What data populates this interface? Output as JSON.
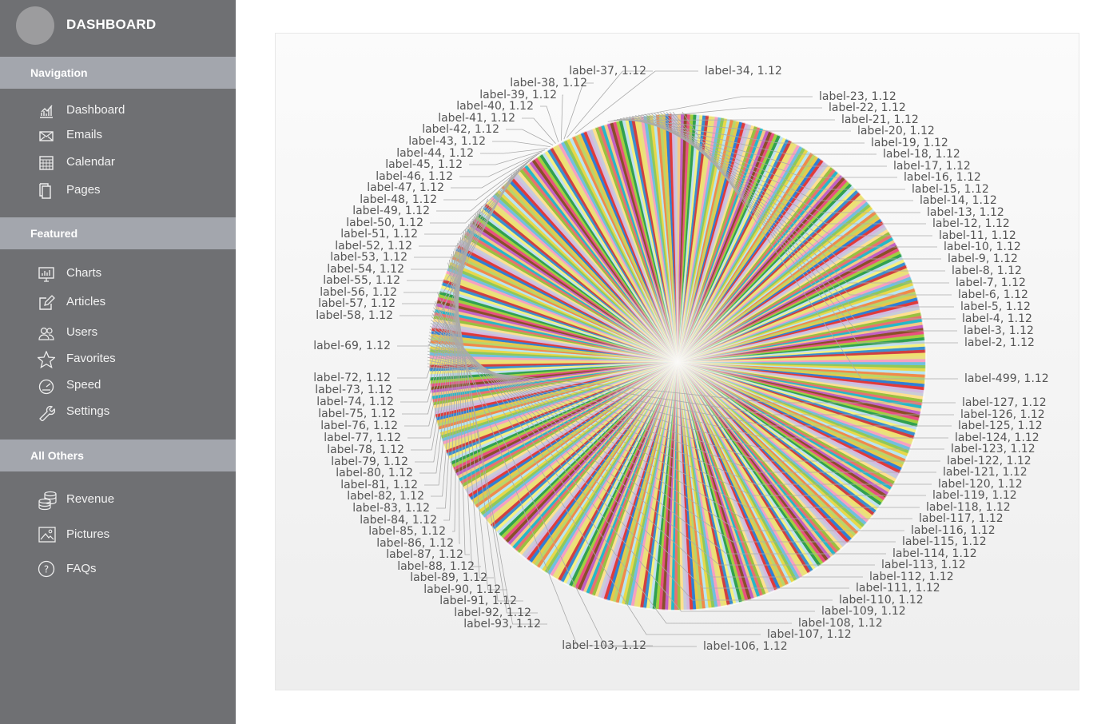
{
  "sidebar": {
    "brand": "DASHBOARD",
    "sections": [
      {
        "title": "Navigation",
        "items": [
          {
            "label": "Dashboard",
            "icon": "bar-chart-icon"
          },
          {
            "label": "Emails",
            "icon": "envelope-icon"
          },
          {
            "label": "Calendar",
            "icon": "calendar-icon"
          },
          {
            "label": "Pages",
            "icon": "pages-icon"
          }
        ]
      },
      {
        "title": "Featured",
        "items": [
          {
            "label": "Charts",
            "icon": "presentation-chart-icon"
          },
          {
            "label": "Articles",
            "icon": "edit-icon"
          },
          {
            "label": "Users",
            "icon": "users-icon"
          },
          {
            "label": "Favorites",
            "icon": "star-icon"
          },
          {
            "label": "Speed",
            "icon": "speedometer-icon"
          },
          {
            "label": "Settings",
            "icon": "wrench-icon"
          }
        ]
      },
      {
        "title": "All Others",
        "items": [
          {
            "label": "Revenue",
            "icon": "coins-icon"
          },
          {
            "label": "Pictures",
            "icon": "picture-icon"
          },
          {
            "label": "FAQs",
            "icon": "question-icon"
          }
        ]
      }
    ]
  },
  "colors": {
    "sidebar_bg": "#6f7073",
    "section_bg": "#a3a6ad",
    "palette": [
      "#c8ccd8",
      "#d2b8e0",
      "#e03a3a",
      "#2f7fd4",
      "#e8c84a",
      "#b9d56a",
      "#f08a4a",
      "#b8e6f0",
      "#e8d84a",
      "#8fc85a",
      "#6fc0e0",
      "#f7a0c0",
      "#e8e080",
      "#f0e070",
      "#d04040",
      "#3a90d0",
      "#f5f080",
      "#c0e0f0",
      "#30a050",
      "#a0d040",
      "#e85080",
      "#8a4f28",
      "#c25fc5",
      "#f4c986",
      "#25b8c8",
      "#e97070",
      "#99c040",
      "#ffe090"
    ]
  },
  "chart_data": {
    "type": "pie",
    "title": "",
    "n_slices": 500,
    "slice_value": 1.12,
    "label_pattern": "label-{i}, {value}",
    "visible_labels": [
      {
        "label": "label-34",
        "value": 1.12
      },
      {
        "label": "label-37",
        "value": 1.12
      },
      {
        "label": "label-38",
        "value": 1.12
      },
      {
        "label": "label-39",
        "value": 1.12
      },
      {
        "label": "label-40",
        "value": 1.12
      },
      {
        "label": "label-41",
        "value": 1.12
      },
      {
        "label": "label-42",
        "value": 1.12
      },
      {
        "label": "label-43",
        "value": 1.12
      },
      {
        "label": "label-44",
        "value": 1.12
      },
      {
        "label": "label-45",
        "value": 1.12
      },
      {
        "label": "label-46",
        "value": 1.12
      },
      {
        "label": "label-47",
        "value": 1.12
      },
      {
        "label": "label-48",
        "value": 1.12
      },
      {
        "label": "label-49",
        "value": 1.12
      },
      {
        "label": "label-50",
        "value": 1.12
      },
      {
        "label": "label-51",
        "value": 1.12
      },
      {
        "label": "label-52",
        "value": 1.12
      },
      {
        "label": "label-53",
        "value": 1.12
      },
      {
        "label": "label-54",
        "value": 1.12
      },
      {
        "label": "label-55",
        "value": 1.12
      },
      {
        "label": "label-56",
        "value": 1.12
      },
      {
        "label": "label-57",
        "value": 1.12
      },
      {
        "label": "label-58",
        "value": 1.12
      },
      {
        "label": "label-69",
        "value": 1.12
      },
      {
        "label": "label-72",
        "value": 1.12
      },
      {
        "label": "label-73",
        "value": 1.12
      },
      {
        "label": "label-74",
        "value": 1.12
      },
      {
        "label": "label-75",
        "value": 1.12
      },
      {
        "label": "label-76",
        "value": 1.12
      },
      {
        "label": "label-77",
        "value": 1.12
      },
      {
        "label": "label-78",
        "value": 1.12
      },
      {
        "label": "label-79",
        "value": 1.12
      },
      {
        "label": "label-80",
        "value": 1.12
      },
      {
        "label": "label-81",
        "value": 1.12
      },
      {
        "label": "label-82",
        "value": 1.12
      },
      {
        "label": "label-83",
        "value": 1.12
      },
      {
        "label": "label-84",
        "value": 1.12
      },
      {
        "label": "label-85",
        "value": 1.12
      },
      {
        "label": "label-86",
        "value": 1.12
      },
      {
        "label": "label-87",
        "value": 1.12
      },
      {
        "label": "label-88",
        "value": 1.12
      },
      {
        "label": "label-89",
        "value": 1.12
      },
      {
        "label": "label-90",
        "value": 1.12
      },
      {
        "label": "label-91",
        "value": 1.12
      },
      {
        "label": "label-92",
        "value": 1.12
      },
      {
        "label": "label-93",
        "value": 1.12
      },
      {
        "label": "label-103",
        "value": 1.12
      },
      {
        "label": "label-106",
        "value": 1.12
      },
      {
        "label": "label-107",
        "value": 1.12
      },
      {
        "label": "label-108",
        "value": 1.12
      },
      {
        "label": "label-109",
        "value": 1.12
      },
      {
        "label": "label-110",
        "value": 1.12
      },
      {
        "label": "label-111",
        "value": 1.12
      },
      {
        "label": "label-112",
        "value": 1.12
      },
      {
        "label": "label-113",
        "value": 1.12
      },
      {
        "label": "label-114",
        "value": 1.12
      },
      {
        "label": "label-115",
        "value": 1.12
      },
      {
        "label": "label-116",
        "value": 1.12
      },
      {
        "label": "label-117",
        "value": 1.12
      },
      {
        "label": "label-118",
        "value": 1.12
      },
      {
        "label": "label-119",
        "value": 1.12
      },
      {
        "label": "label-120",
        "value": 1.12
      },
      {
        "label": "label-121",
        "value": 1.12
      },
      {
        "label": "label-122",
        "value": 1.12
      },
      {
        "label": "label-123",
        "value": 1.12
      },
      {
        "label": "label-124",
        "value": 1.12
      },
      {
        "label": "label-125",
        "value": 1.12
      },
      {
        "label": "label-126",
        "value": 1.12
      },
      {
        "label": "label-127",
        "value": 1.12
      },
      {
        "label": "label-499",
        "value": 1.12
      },
      {
        "label": "label-2",
        "value": 1.12
      },
      {
        "label": "label-3",
        "value": 1.12
      },
      {
        "label": "label-4",
        "value": 1.12
      },
      {
        "label": "label-5",
        "value": 1.12
      },
      {
        "label": "label-6",
        "value": 1.12
      },
      {
        "label": "label-7",
        "value": 1.12
      },
      {
        "label": "label-8",
        "value": 1.12
      },
      {
        "label": "label-9",
        "value": 1.12
      },
      {
        "label": "label-10",
        "value": 1.12
      },
      {
        "label": "label-11",
        "value": 1.12
      },
      {
        "label": "label-12",
        "value": 1.12
      },
      {
        "label": "label-13",
        "value": 1.12
      },
      {
        "label": "label-14",
        "value": 1.12
      },
      {
        "label": "label-15",
        "value": 1.12
      },
      {
        "label": "label-16",
        "value": 1.12
      },
      {
        "label": "label-17",
        "value": 1.12
      },
      {
        "label": "label-18",
        "value": 1.12
      },
      {
        "label": "label-19",
        "value": 1.12
      },
      {
        "label": "label-20",
        "value": 1.12
      },
      {
        "label": "label-21",
        "value": 1.12
      },
      {
        "label": "label-22",
        "value": 1.12
      },
      {
        "label": "label-23",
        "value": 1.12
      }
    ]
  }
}
